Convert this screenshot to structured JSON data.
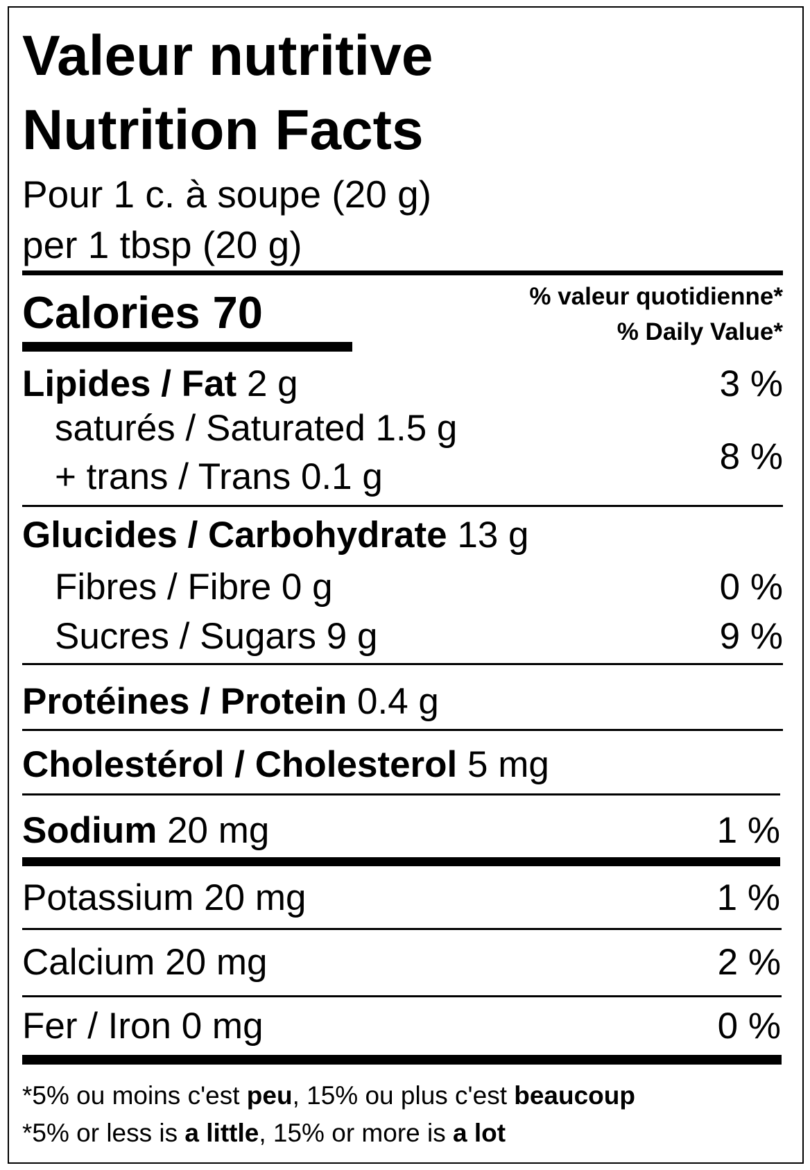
{
  "title_fr": "Valeur nutritive",
  "title_en": "Nutrition Facts",
  "serving_fr": "Pour 1 c. à soupe (20 g)",
  "serving_en": "per 1 tbsp (20 g)",
  "calories": {
    "label": "Calories",
    "value": "70"
  },
  "daily_value_header": {
    "fr": "% valeur quotidienne*",
    "en": "% Daily Value*"
  },
  "nutrients": {
    "fat": {
      "label": "Lipides / Fat",
      "amount": "2 g",
      "dv": "3 %"
    },
    "saturated": {
      "label": "saturés / Saturated 1.5 g"
    },
    "trans": {
      "label": "+ trans / Trans 0.1 g"
    },
    "sat_trans_dv": "8 %",
    "carbohydrate": {
      "label": "Glucides / Carbohydrate",
      "amount": "13 g"
    },
    "fibre": {
      "label": "Fibres / Fibre 0 g",
      "dv": "0 %"
    },
    "sugars": {
      "label": "Sucres / Sugars 9 g",
      "dv": "9 %"
    },
    "protein": {
      "label": "Protéines / Protein",
      "amount": "0.4 g"
    },
    "cholesterol": {
      "label": "Cholestérol / Cholesterol",
      "amount": "5 mg"
    },
    "sodium": {
      "label": "Sodium",
      "amount": "20 mg",
      "dv": "1 %"
    },
    "potassium": {
      "label": "Potassium 20 mg",
      "dv": "1 %"
    },
    "calcium": {
      "label": "Calcium 20 mg",
      "dv": "2 %"
    },
    "iron": {
      "label": "Fer / Iron 0 mg",
      "dv": "0 %"
    }
  },
  "footnote_fr": {
    "p1": "*5% ou moins c'est ",
    "b1": "peu",
    "p2": ", 15% ou plus c'est ",
    "b2": "beaucoup"
  },
  "footnote_en": {
    "p1": "*5% or less is ",
    "b1": "a little",
    "p2": ", 15% or more is ",
    "b2": "a lot"
  }
}
